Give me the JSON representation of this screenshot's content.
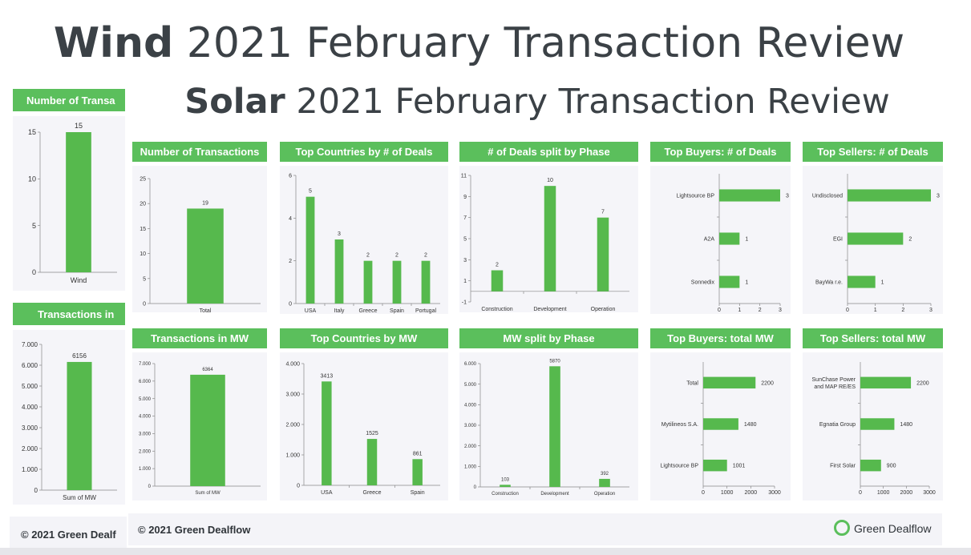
{
  "titles": {
    "wind_bold": "Wind",
    "wind_rest": " 2021 February Transaction Review",
    "solar_bold": "Solar",
    "solar_rest": " 2021 February Transaction Review"
  },
  "colors": {
    "accent": "#5bbf5c",
    "bar": "#56b94d",
    "title": "#3b4146",
    "panel": "#f5f5f9"
  },
  "wind": {
    "header_transactions": "Number of Transa",
    "header_mw": "Transactions in",
    "footer": "© 2021 Green Dealf"
  },
  "solar": {
    "headers": {
      "transactions": "Number of Transactions",
      "countries_deals": "Top Countries by # of Deals",
      "deals_phase": "# of Deals split by Phase",
      "buyers_deals": "Top Buyers: # of Deals",
      "sellers_deals": "Top Sellers: # of Deals",
      "transactions_mw": "Transactions in MW",
      "countries_mw": "Top Countries by MW",
      "mw_phase": "MW split by Phase",
      "buyers_mw": "Top Buyers: total MW",
      "sellers_mw": "Top Sellers: total MW"
    },
    "footer": "© 2021 Green Dealflow",
    "logo_text": "Green Dealflow"
  },
  "chart_data": [
    {
      "id": "wind_transactions",
      "type": "bar",
      "categories": [
        "Wind"
      ],
      "values": [
        15
      ],
      "ylim": [
        0,
        15
      ],
      "yticks": [
        "0",
        "5",
        "10",
        "15"
      ],
      "ytick_values": [
        0,
        5,
        10,
        15
      ]
    },
    {
      "id": "wind_mw",
      "type": "bar",
      "categories": [
        "Sum of MW"
      ],
      "values": [
        6156
      ],
      "ylim": [
        0,
        7000
      ],
      "yticks": [
        "0",
        "1.000",
        "2.000",
        "3.000",
        "4.000",
        "5.000",
        "6.000",
        "7.000"
      ],
      "ytick_values": [
        0,
        1000,
        2000,
        3000,
        4000,
        5000,
        6000,
        7000
      ]
    },
    {
      "id": "solar_transactions",
      "type": "bar",
      "categories": [
        "Total"
      ],
      "values": [
        19
      ],
      "ylim": [
        0,
        25
      ],
      "yticks": [
        "0",
        "5",
        "10",
        "15",
        "20",
        "25"
      ],
      "ytick_values": [
        0,
        5,
        10,
        15,
        20,
        25
      ]
    },
    {
      "id": "solar_countries_deals",
      "type": "bar",
      "categories": [
        "USA",
        "Italy",
        "Greece",
        "Spain",
        "Portugal"
      ],
      "values": [
        5,
        3,
        2,
        2,
        2
      ],
      "ylim": [
        0,
        6
      ],
      "yticks": [
        "0",
        "2",
        "4",
        "6"
      ],
      "ytick_values": [
        0,
        2,
        4,
        6
      ]
    },
    {
      "id": "solar_deals_phase",
      "type": "bar",
      "categories": [
        "Construction",
        "Development",
        "Operation"
      ],
      "values": [
        2,
        10,
        7
      ],
      "ylim": [
        -1,
        11
      ],
      "yticks": [
        "-1",
        "1",
        "3",
        "5",
        "7",
        "9",
        "11"
      ],
      "ytick_values": [
        -1,
        1,
        3,
        5,
        7,
        9,
        11
      ]
    },
    {
      "id": "solar_buyers_deals",
      "type": "bar",
      "orientation": "horizontal",
      "categories": [
        "Lightsource BP",
        "A2A",
        "Sonnedix"
      ],
      "values": [
        3,
        1,
        1
      ],
      "xlim": [
        0,
        3
      ],
      "xticks": [
        "0",
        "1",
        "2",
        "3"
      ],
      "xtick_values": [
        0,
        1,
        2,
        3
      ]
    },
    {
      "id": "solar_sellers_deals",
      "type": "bar",
      "orientation": "horizontal",
      "categories": [
        "Undisclosed",
        "EGI",
        "BayWa r.e."
      ],
      "values": [
        3,
        2,
        1
      ],
      "xlim": [
        0,
        3
      ],
      "xticks": [
        "0",
        "1",
        "2",
        "3"
      ],
      "xtick_values": [
        0,
        1,
        2,
        3
      ]
    },
    {
      "id": "solar_mw",
      "type": "bar",
      "categories": [
        "Sum of MW"
      ],
      "values": [
        6364
      ],
      "ylim": [
        0,
        7000
      ],
      "yticks": [
        "0",
        "1.000",
        "2.000",
        "3.000",
        "4.000",
        "5.000",
        "6.000",
        "7.000"
      ],
      "ytick_values": [
        0,
        1000,
        2000,
        3000,
        4000,
        5000,
        6000,
        7000
      ]
    },
    {
      "id": "solar_countries_mw",
      "type": "bar",
      "categories": [
        "USA",
        "Greece",
        "Spain"
      ],
      "values": [
        3413,
        1525,
        861
      ],
      "ylim": [
        0,
        4000
      ],
      "yticks": [
        "0",
        "1.000",
        "2.000",
        "3.000",
        "4.000"
      ],
      "ytick_values": [
        0,
        1000,
        2000,
        3000,
        4000
      ]
    },
    {
      "id": "solar_mw_phase",
      "type": "bar",
      "categories": [
        "Construction",
        "Development",
        "Operation"
      ],
      "values": [
        103,
        5870,
        392
      ],
      "ylim": [
        0,
        6000
      ],
      "yticks": [
        "0",
        "1.000",
        "2.000",
        "3.000",
        "4.000",
        "5.000",
        "6.000"
      ],
      "ytick_values": [
        0,
        1000,
        2000,
        3000,
        4000,
        5000,
        6000
      ]
    },
    {
      "id": "solar_buyers_mw",
      "type": "bar",
      "orientation": "horizontal",
      "categories": [
        "Total",
        "Mytilineos S.A.",
        "Lightsource BP"
      ],
      "values": [
        2200,
        1480,
        1001
      ],
      "xlim": [
        0,
        3000
      ],
      "xticks": [
        "0",
        "1000",
        "2000",
        "3000"
      ],
      "xtick_values": [
        0,
        1000,
        2000,
        3000
      ]
    },
    {
      "id": "solar_sellers_mw",
      "type": "bar",
      "orientation": "horizontal",
      "categories": [
        "SunChase Power and MAP RE/ES",
        "Egnatia Group",
        "First Solar"
      ],
      "values": [
        2200,
        1480,
        900
      ],
      "xlim": [
        0,
        3000
      ],
      "xticks": [
        "0",
        "1000",
        "2000",
        "3000"
      ],
      "xtick_values": [
        0,
        1000,
        2000,
        3000
      ]
    }
  ]
}
